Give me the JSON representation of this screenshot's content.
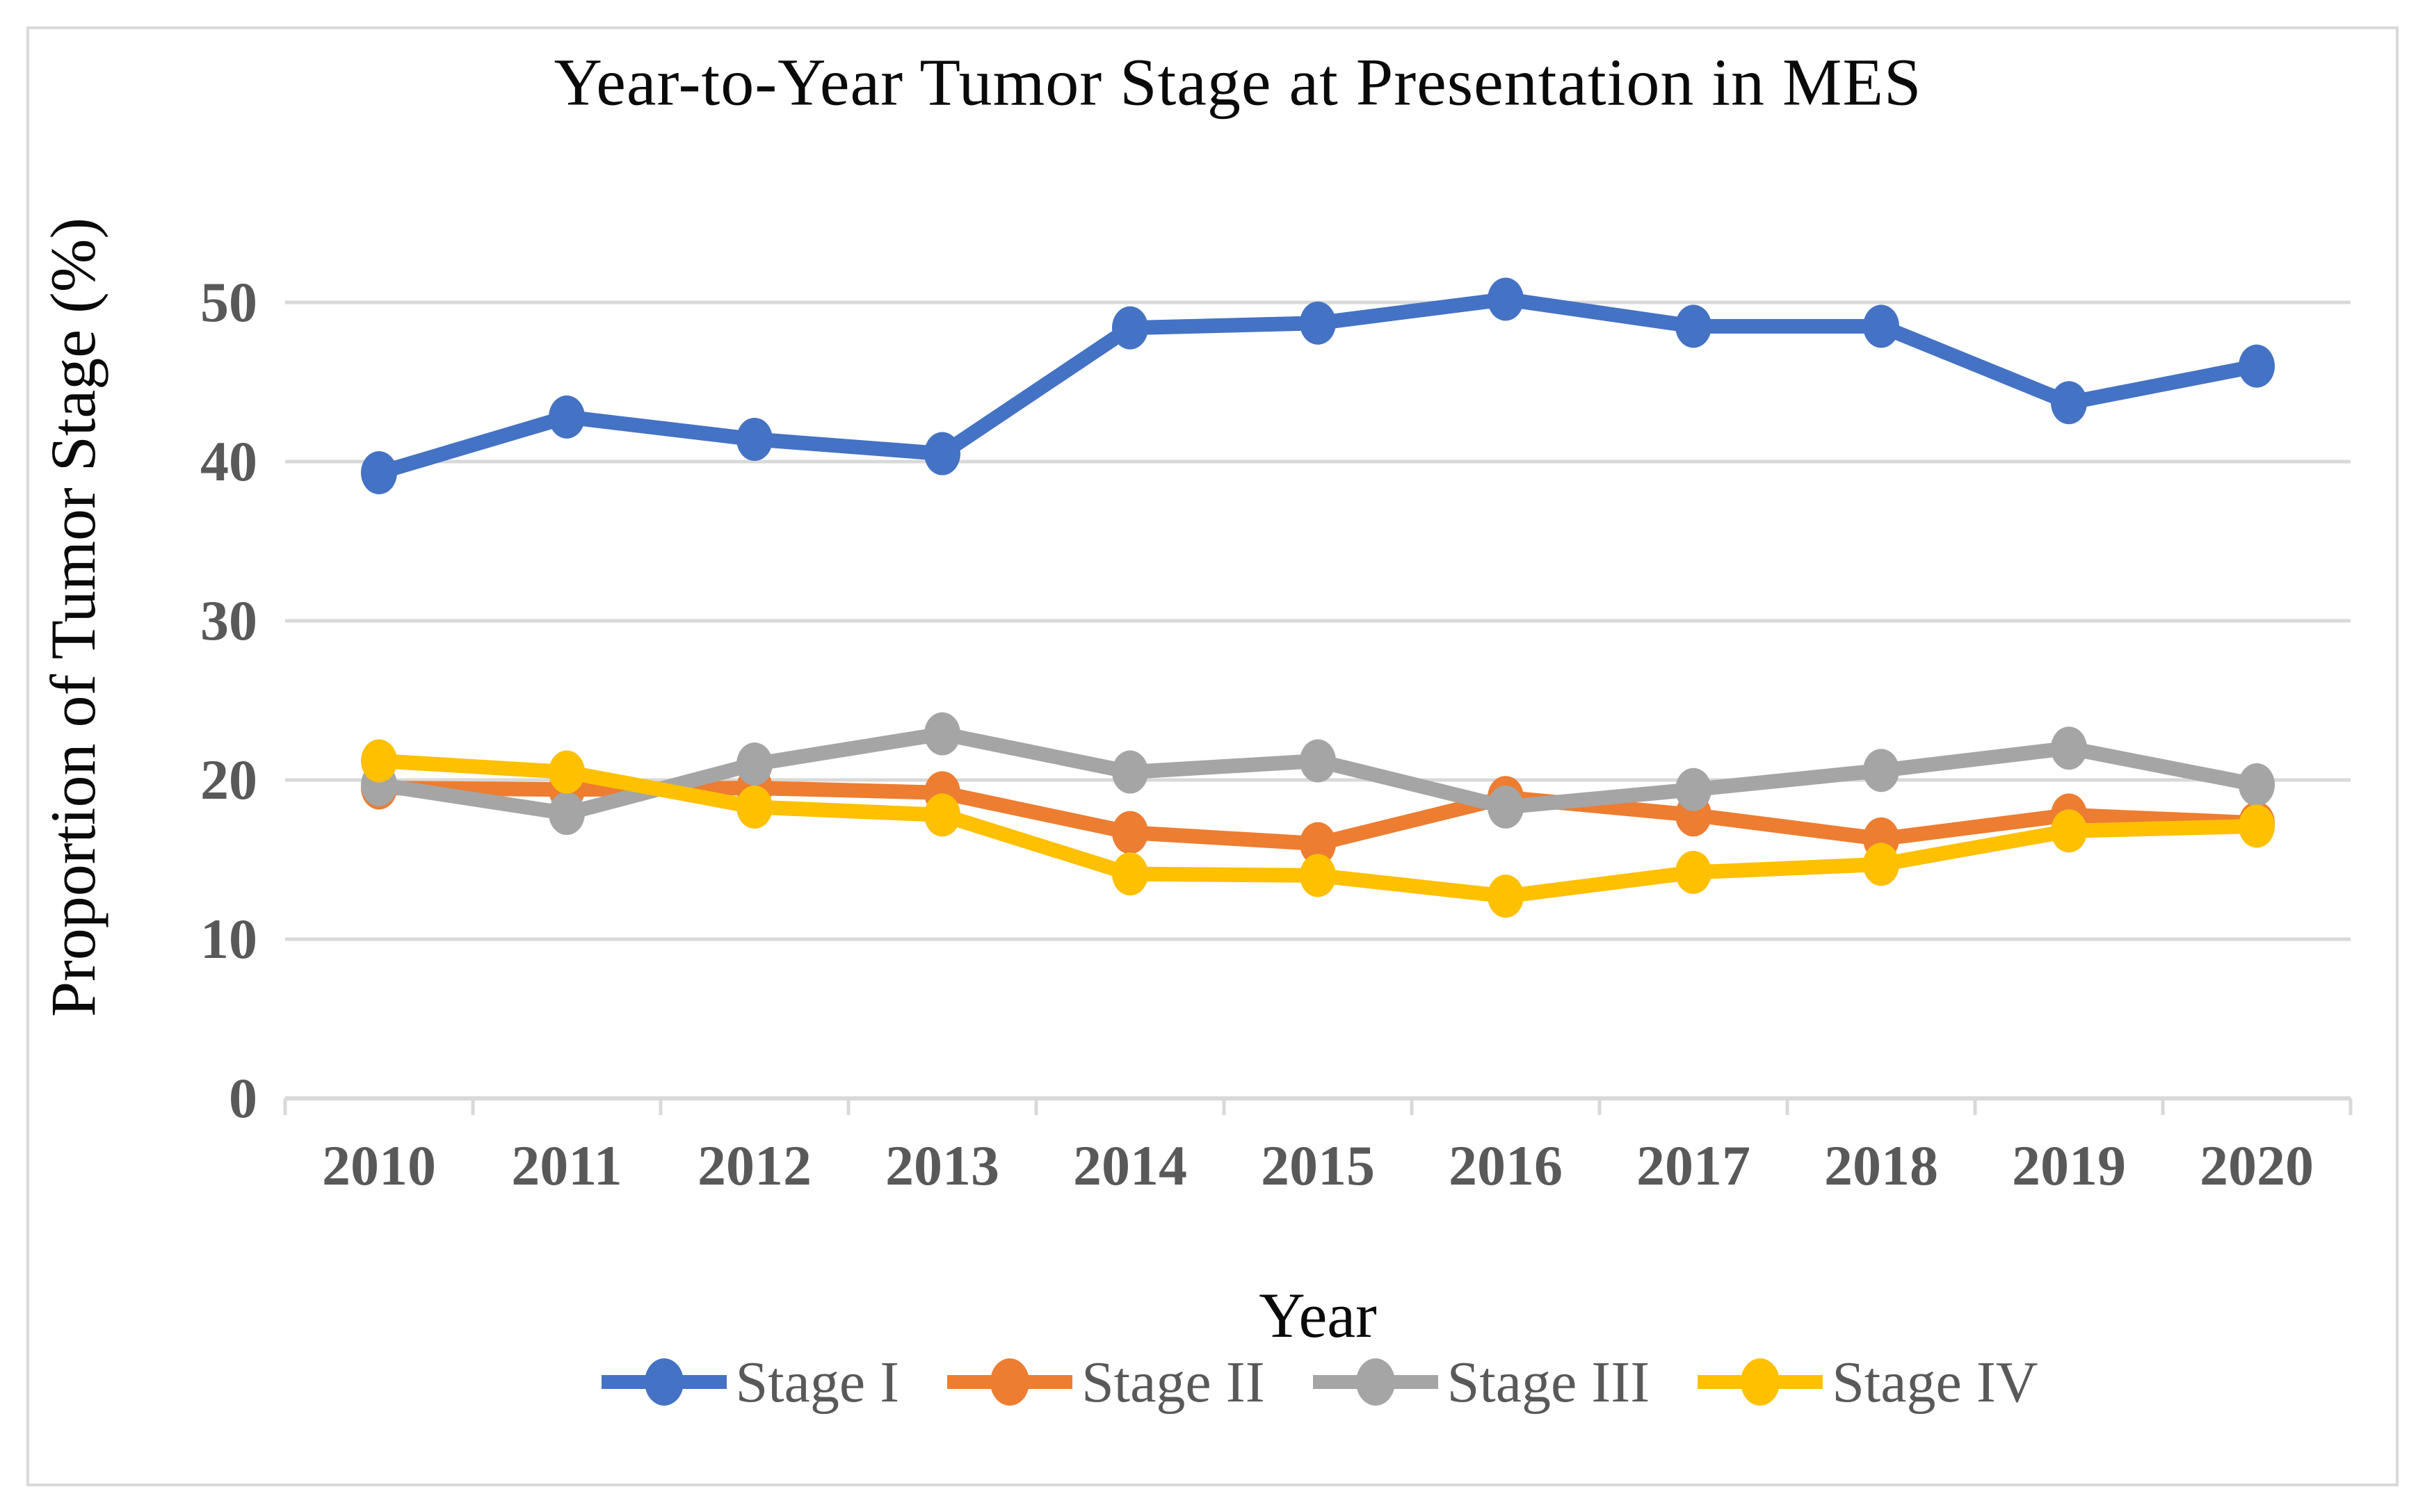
{
  "chart_data": {
    "type": "line",
    "title": "Year-to-Year Tumor Stage at Presentation in MES",
    "xlabel": "Year",
    "ylabel": "Proportion of Tumor Stage (%)",
    "categories": [
      "2010",
      "2011",
      "2012",
      "2013",
      "2014",
      "2015",
      "2016",
      "2017",
      "2018",
      "2019",
      "2020"
    ],
    "y_ticks": [
      0,
      10,
      20,
      30,
      40,
      50
    ],
    "ylim": [
      0,
      55
    ],
    "grid": true,
    "legend_position": "bottom",
    "series": [
      {
        "name": "Stage I",
        "color": "#4472C4",
        "values": [
          39.3,
          42.8,
          41.4,
          40.5,
          48.4,
          48.7,
          50.2,
          48.5,
          48.5,
          43.7,
          46.0
        ]
      },
      {
        "name": "Stage II",
        "color": "#ED7D31",
        "values": [
          19.5,
          19.4,
          19.5,
          19.2,
          16.7,
          16.0,
          18.9,
          17.8,
          16.3,
          17.8,
          17.3
        ]
      },
      {
        "name": "Stage III",
        "color": "#A5A5A5",
        "values": [
          19.7,
          17.9,
          21.0,
          22.9,
          20.5,
          21.2,
          18.3,
          19.4,
          20.6,
          22.0,
          19.7
        ]
      },
      {
        "name": "Stage IV",
        "color": "#FFC000",
        "values": [
          21.2,
          20.5,
          18.3,
          17.8,
          14.1,
          14.0,
          12.7,
          14.2,
          14.7,
          16.8,
          17.1
        ]
      }
    ],
    "grid_color": "#D9D9D9",
    "axis_line_color": "#D9D9D9",
    "tick_label_color": "#595959",
    "title_color": "#0a0a0a",
    "border_color": "#D9D9D9"
  }
}
